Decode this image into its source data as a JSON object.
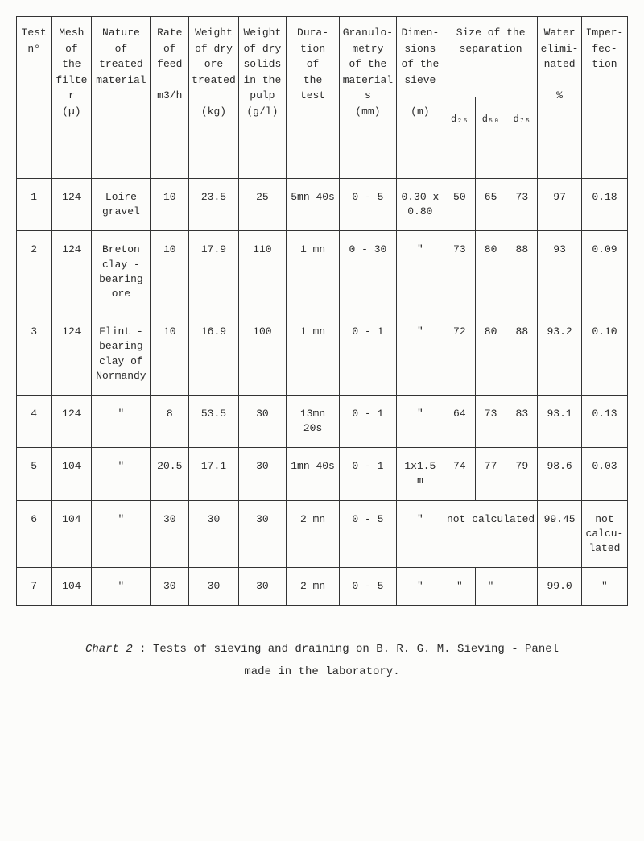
{
  "table": {
    "headers": {
      "test": "Test\nn°",
      "mesh": "Mesh\nof\nthe\nfilter\n(µ)",
      "nature": "Nature\nof\ntreated\nmaterial",
      "rate": "Rate\nof\nfeed\n\nm3/h",
      "weight_ore": "Weight\nof dry\nore\ntreated\n\n(kg)",
      "weight_sol": "Weight\nof dry\nsolids\nin the\npulp\n(g/l)",
      "duration": "Dura-\ntion\nof\nthe\ntest",
      "granulo": "Granulo-\nmetry\nof the\nmaterials\n(mm)",
      "sieve": "Dimen-\nsions\nof the\nsieve\n\n(m)",
      "size_sep": "Size of the\nseparation",
      "d25": "d₂₅",
      "d50": "d₅₀",
      "d75": "d₇₅",
      "water": "Water\nelimi-\nnated\n\n%",
      "imperf": "Imper-\nfec-\ntion"
    },
    "rows": [
      {
        "test": "1",
        "mesh": "124",
        "nature": "Loire\ngravel",
        "rate": "10",
        "wore": "23.5",
        "wsol": "25",
        "dur": "5mn 40s",
        "gran": "0 - 5",
        "sieve": "0.30 x\n0.80",
        "d25": "50",
        "d50": "65",
        "d75": "73",
        "water": "97",
        "imp": "0.18"
      },
      {
        "test": "2",
        "mesh": "124",
        "nature": "Breton\nclay -\nbearing\nore",
        "rate": "10",
        "wore": "17.9",
        "wsol": "110",
        "dur": "1 mn",
        "gran": "0 - 30",
        "sieve": "\"",
        "d25": "73",
        "d50": "80",
        "d75": "88",
        "water": "93",
        "imp": "0.09"
      },
      {
        "test": "3",
        "mesh": "124",
        "nature": "Flint -\nbearing\nclay of\nNormandy",
        "rate": "10",
        "wore": "16.9",
        "wsol": "100",
        "dur": "1 mn",
        "gran": "0 - 1",
        "sieve": "\"",
        "d25": "72",
        "d50": "80",
        "d75": "88",
        "water": "93.2",
        "imp": "0.10"
      },
      {
        "test": "4",
        "mesh": "124",
        "nature": "\"",
        "rate": "8",
        "wore": "53.5",
        "wsol": "30",
        "dur": "13mn 20s",
        "gran": "0 - 1",
        "sieve": "\"",
        "d25": "64",
        "d50": "73",
        "d75": "83",
        "water": "93.1",
        "imp": "0.13"
      },
      {
        "test": "5",
        "mesh": "104",
        "nature": "\"",
        "rate": "20.5",
        "wore": "17.1",
        "wsol": "30",
        "dur": "1mn 40s",
        "gran": "0 - 1",
        "sieve": "1x1.5 m",
        "d25": "74",
        "d50": "77",
        "d75": "79",
        "water": "98.6",
        "imp": "0.03"
      },
      {
        "test": "6",
        "mesh": "104",
        "nature": "\"",
        "rate": "30",
        "wore": "30",
        "wsol": "30",
        "dur": "2 mn",
        "gran": "0 - 5",
        "sieve": "\"",
        "d25_span": "not calculated",
        "water": "99.45",
        "imp": "not\ncalcu-\nlated"
      },
      {
        "test": "7",
        "mesh": "104",
        "nature": "\"",
        "rate": "30",
        "wore": "30",
        "wsol": "30",
        "dur": "2 mn",
        "gran": "0 - 5",
        "sieve": "\"",
        "d25": "\"",
        "d50": "\"",
        "d75": "",
        "water": "99.0",
        "imp": "\""
      }
    ]
  },
  "caption_label": "Chart 2",
  "caption_text1": " :  Tests of sieving and draining  on  B. R. G. M.  Sieving - Panel",
  "caption_text2": "made  in  the  laboratory."
}
